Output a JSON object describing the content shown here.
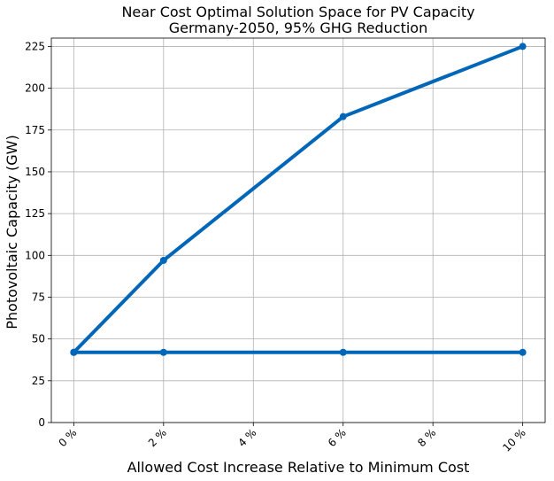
{
  "chart_data": {
    "type": "line",
    "title": "Near Cost Optimal Solution Space for PV Capacity",
    "subtitle": "Germany-2050, 95% GHG Reduction",
    "xlabel": "Allowed Cost Increase Relative to Minimum Cost",
    "ylabel": "Photovoltaic Capacity (GW)",
    "x_unit": "%",
    "x_ticks": [
      0,
      2,
      4,
      6,
      8,
      10
    ],
    "x_tick_labels": [
      "0 %",
      "2 %",
      "4 %",
      "6 %",
      "8 %",
      "10 %"
    ],
    "y_ticks": [
      0,
      25,
      50,
      75,
      100,
      125,
      150,
      175,
      200,
      225
    ],
    "y_tick_labels": [
      "0",
      "25",
      "50",
      "75",
      "100",
      "125",
      "150",
      "175",
      "200",
      "225"
    ],
    "xlim": [
      -0.5,
      10.5
    ],
    "ylim": [
      0,
      230
    ],
    "grid": true,
    "line_color": "#0066b8",
    "series": [
      {
        "x": [
          0,
          2,
          6,
          10
        ],
        "values": [
          42,
          97,
          183,
          225
        ]
      },
      {
        "x": [
          0,
          2,
          6,
          10
        ],
        "values": [
          42,
          42,
          42,
          42
        ]
      }
    ]
  }
}
